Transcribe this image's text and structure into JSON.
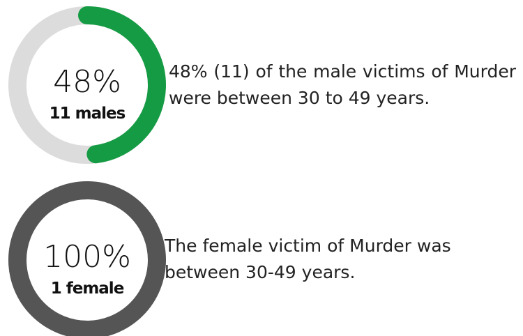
{
  "chart_data": [
    {
      "type": "donut",
      "values": [
        48
      ],
      "value_labels": [
        "48%"
      ],
      "subtitle": "11 males",
      "color": "#169b45",
      "track_color": "#dcdcdc",
      "annotation": "48% (11) of the male victims of Murder were between 30 to 49 years."
    },
    {
      "type": "donut",
      "values": [
        100
      ],
      "value_labels": [
        "100%"
      ],
      "subtitle": "1 female",
      "color": "#555555",
      "track_color": "#dcdcdc",
      "annotation": "The female victim of Murder was between 30-49 years."
    }
  ]
}
